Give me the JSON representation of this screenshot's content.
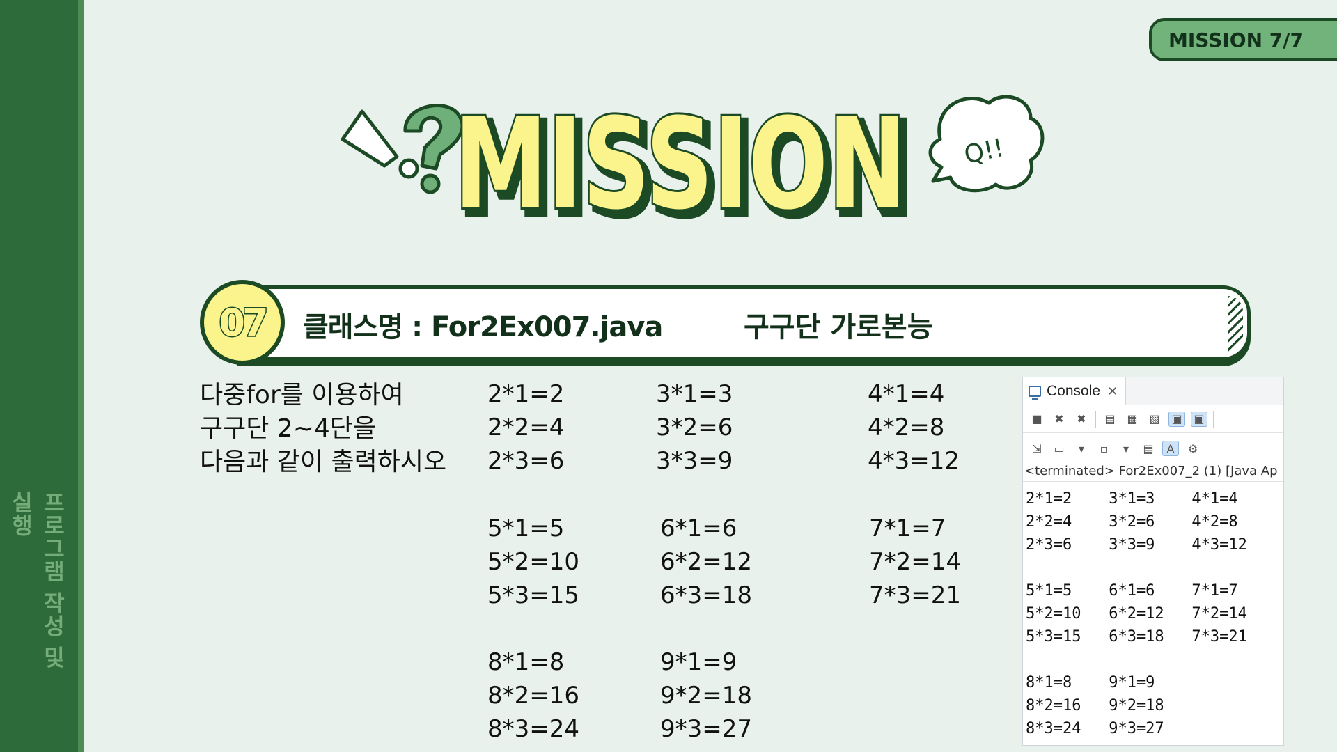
{
  "side": {
    "label": "프로그램 작성 및 실행"
  },
  "badge": {
    "label": "MISSION 7/7"
  },
  "title": {
    "text": "MISSION",
    "bubble": "Q!!"
  },
  "problem": {
    "number": "07",
    "class_name": "클래스명 : For2Ex007.java",
    "subject": "구구단 가로본능"
  },
  "instructions": {
    "lines": [
      "다중for를 이용하여",
      "구구단 2~4단을",
      "다음과 같이 출력하시오"
    ]
  },
  "gugudan_blocks": [
    {
      "col1": [
        "2*1=2",
        "2*2=4",
        "2*3=6"
      ],
      "col2": [
        "3*1=3",
        "3*2=6",
        "3*3=9"
      ],
      "col3": [
        "4*1=4",
        "4*2=8",
        "4*3=12"
      ]
    },
    {
      "col1": [
        "5*1=5",
        "5*2=10",
        "5*3=15"
      ],
      "col2": [
        "6*1=6",
        "6*2=12",
        "6*3=18"
      ],
      "col3": [
        "7*1=7",
        "7*2=14",
        "7*3=21"
      ]
    },
    {
      "col1": [
        "8*1=8",
        "8*2=16",
        "8*3=24"
      ],
      "col2": [
        "9*1=9",
        "9*2=18",
        "9*3=27"
      ]
    }
  ],
  "console": {
    "tab_label": "Console",
    "terminated": "<terminated> For2Ex007_2 (1) [Java Ap",
    "output": "2*1=2    3*1=3    4*1=4\n2*2=4    3*2=6    4*2=8\n2*3=6    3*3=9    4*3=12\n\n5*1=5    6*1=6    7*1=7\n5*2=10   6*2=12   7*2=14\n5*3=15   6*3=18   7*3=21\n\n8*1=8    9*1=9\n8*2=16   9*2=18\n8*3=24   9*3=27"
  },
  "colors": {
    "background": "#e8f1ec",
    "sidebar": "#2e6b3a",
    "accent_green": "#72b37c",
    "title_yellow": "#fbf48d",
    "dark_green": "#1b4a24"
  }
}
